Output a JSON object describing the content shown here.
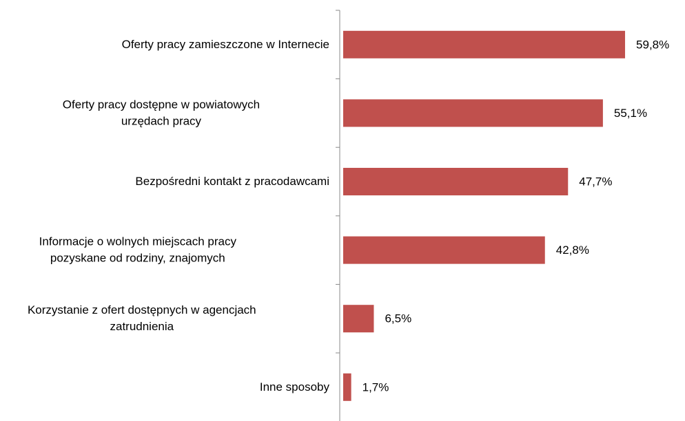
{
  "chart_data": {
    "type": "bar",
    "orientation": "horizontal",
    "categories": [
      "Oferty pracy zamieszczone w Internecie",
      "Oferty pracy dostępne w powiatowych\nurzędach pracy",
      "Bezpośredni kontakt z pracodawcami",
      "Informacje o wolnych miejscach pracy\npozyskane od rodziny, znajomych",
      "Korzystanie z ofert dostępnych w agencjach\nzatrudnienia",
      "Inne sposoby"
    ],
    "values": [
      59.8,
      55.1,
      47.7,
      42.8,
      6.5,
      1.7
    ],
    "value_labels": [
      "59,8%",
      "55,1%",
      "47,7%",
      "42,8%",
      "6,5%",
      "1,7%"
    ],
    "color": "#c0504d"
  }
}
